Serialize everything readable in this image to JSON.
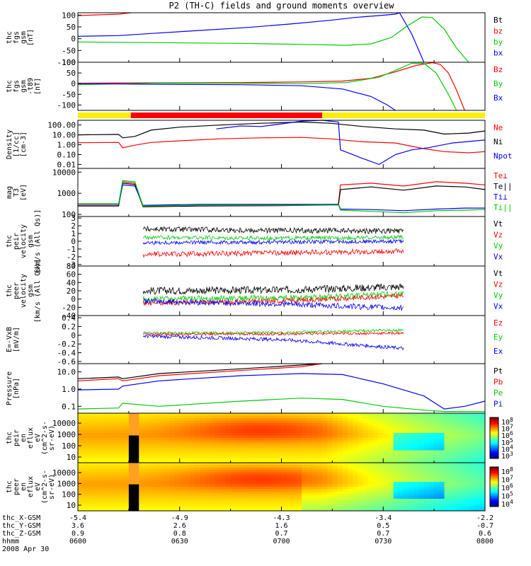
{
  "title": "P2 (TH-C) fields and ground moments overview",
  "chart_data": [
    {
      "panel": "fgs-gsm",
      "type": "line",
      "ylabel": [
        "thc",
        "fgs",
        "gsm",
        "[nT]"
      ],
      "ylim": [
        -100,
        110
      ],
      "yticks": [
        100,
        50,
        0,
        -50,
        -100
      ],
      "legend": [
        {
          "label": "Bt",
          "color": "#000000"
        },
        {
          "label": "bz",
          "color": "#ff0000"
        },
        {
          "label": "by",
          "color": "#00cc00"
        },
        {
          "label": "bx",
          "color": "#0000ff"
        }
      ],
      "series": [
        {
          "color": "#ff0000",
          "x": [
            0.0,
            0.1,
            0.13
          ],
          "y": [
            98,
            104,
            112
          ]
        },
        {
          "color": "#0000ff",
          "x": [
            0.0,
            0.1,
            0.18,
            0.3,
            0.42,
            0.52,
            0.62,
            0.68,
            0.74,
            0.78,
            0.79,
            0.82,
            0.85
          ],
          "y": [
            10,
            13,
            22,
            35,
            48,
            62,
            78,
            90,
            98,
            104,
            110,
            20,
            -100
          ]
        },
        {
          "color": "#00cc00",
          "x": [
            0.0,
            0.2,
            0.4,
            0.55,
            0.66,
            0.72,
            0.77,
            0.81,
            0.845,
            0.87,
            0.9,
            0.93,
            0.96
          ],
          "y": [
            -14,
            -17,
            -20,
            -24,
            -28,
            -22,
            5,
            55,
            92,
            90,
            40,
            -40,
            -110
          ]
        }
      ]
    },
    {
      "panel": "fgs-gsm-t89",
      "type": "line",
      "ylabel": [
        "thc",
        "fgs",
        "gsm",
        "-t89",
        "[nT]"
      ],
      "ylim": [
        -125,
        100
      ],
      "yticks": [
        100,
        50,
        0,
        -50,
        -100
      ],
      "legend": [
        {
          "label": "Bz",
          "color": "#ff0000"
        },
        {
          "label": "By",
          "color": "#00cc00"
        },
        {
          "label": "Bx",
          "color": "#0000ff"
        }
      ],
      "series": [
        {
          "color": "#ff0000",
          "x": [
            0.0,
            0.2,
            0.4,
            0.55,
            0.65,
            0.72,
            0.78,
            0.83,
            0.87,
            0.89,
            0.91,
            0.93,
            0.95
          ],
          "y": [
            2,
            4,
            5,
            8,
            12,
            25,
            55,
            85,
            98,
            90,
            50,
            -30,
            -130
          ]
        },
        {
          "color": "#00cc00",
          "x": [
            0.0,
            0.2,
            0.4,
            0.55,
            0.66,
            0.74,
            0.79,
            0.82,
            0.85,
            0.88,
            0.91,
            0.93
          ],
          "y": [
            -5,
            3,
            2,
            0,
            5,
            30,
            70,
            95,
            95,
            50,
            -50,
            -130
          ]
        },
        {
          "color": "#0000ff",
          "x": [
            0.0,
            0.2,
            0.4,
            0.55,
            0.65,
            0.72,
            0.76,
            0.78
          ],
          "y": [
            0,
            -3,
            -5,
            -10,
            -25,
            -60,
            -100,
            -130
          ]
        }
      ]
    },
    {
      "panel": "mode-bar",
      "type": "bar",
      "segments": [
        {
          "start": 0.0,
          "end": 0.13,
          "color": "#ffee00"
        },
        {
          "start": 0.13,
          "end": 0.6,
          "color": "#ff0000"
        },
        {
          "start": 0.6,
          "end": 1.0,
          "color": "#ffee00"
        }
      ]
    },
    {
      "panel": "density",
      "type": "line",
      "log": true,
      "ylabel": [
        "Density",
        "[1/cc]",
        "[cm-3]"
      ],
      "ylim": [
        0.004,
        300
      ],
      "yticks": [
        "100.00",
        "10.00",
        "1.00",
        "0.10",
        "0.01"
      ],
      "ytick_values": [
        100,
        10,
        1,
        0.1,
        0.01
      ],
      "legend": [
        {
          "label": "Ne",
          "color": "#ff0000"
        },
        {
          "label": "Ni",
          "color": "#000000"
        },
        {
          "label": "Npot",
          "color": "#0000ff"
        }
      ],
      "series": [
        {
          "color": "#000000",
          "x": [
            0.0,
            0.1,
            0.11,
            0.14,
            0.18,
            0.25,
            0.35,
            0.45,
            0.55,
            0.62,
            0.7,
            0.78,
            0.85,
            0.9,
            0.96,
            1.0
          ],
          "y": [
            10,
            11,
            5,
            7,
            30,
            60,
            100,
            150,
            200,
            150,
            70,
            40,
            30,
            12,
            15,
            25
          ]
        },
        {
          "color": "#ff0000",
          "x": [
            0.0,
            0.1,
            0.11,
            0.14,
            0.18,
            0.25,
            0.35,
            0.45,
            0.55,
            0.62,
            0.7,
            0.78,
            0.85,
            0.9,
            0.96,
            1.0
          ],
          "y": [
            1.6,
            1.7,
            0.5,
            0.9,
            1.7,
            2.5,
            4,
            5,
            5.5,
            4,
            2,
            1.5,
            0.4,
            0.2,
            0.15,
            0.2
          ]
        },
        {
          "color": "#0000ff",
          "x": [
            0.34,
            0.4,
            0.45,
            0.5,
            0.55,
            0.6,
            0.64,
            0.645,
            0.7,
            0.74,
            0.78,
            0.82,
            0.86,
            0.92,
            1.0
          ],
          "y": [
            40,
            80,
            70,
            130,
            250,
            300,
            200,
            0.3,
            0.04,
            0.01,
            0.1,
            0.3,
            0.5,
            1.5,
            3
          ]
        }
      ]
    },
    {
      "panel": "temperature",
      "type": "line",
      "log": true,
      "ylabel": [
        "mag",
        "T3",
        "[eV]"
      ],
      "ylim": [
        80,
        15000
      ],
      "yticks": [
        "10000",
        "1000",
        "100"
      ],
      "ytick_values": [
        10000,
        1000,
        100
      ],
      "legend": [
        {
          "label": "Te⊥",
          "color": "#ff0000"
        },
        {
          "label": "Te||",
          "color": "#000000"
        },
        {
          "label": "Ti⊥",
          "color": "#0000ff"
        },
        {
          "label": "Ti||",
          "color": "#00cc00"
        }
      ],
      "series": [
        {
          "color": "#ff0000",
          "x": [
            0.0,
            0.1,
            0.11,
            0.14,
            0.16,
            0.3,
            0.5,
            0.64,
            0.645,
            0.72,
            0.8,
            0.88,
            0.95,
            1.0
          ],
          "y": [
            260,
            260,
            3500,
            3000,
            250,
            270,
            280,
            300,
            2500,
            3000,
            2200,
            3500,
            3000,
            2500
          ]
        },
        {
          "color": "#000000",
          "x": [
            0.0,
            0.1,
            0.11,
            0.14,
            0.16,
            0.3,
            0.5,
            0.64,
            0.645,
            0.72,
            0.8,
            0.88,
            0.95,
            1.0
          ],
          "y": [
            250,
            250,
            3000,
            2600,
            230,
            250,
            260,
            280,
            1500,
            2000,
            1400,
            2200,
            2000,
            1500
          ]
        },
        {
          "color": "#0000ff",
          "x": [
            0.0,
            0.1,
            0.11,
            0.14,
            0.16,
            0.3,
            0.5,
            0.64,
            0.645,
            0.72,
            0.8,
            0.88,
            0.95,
            1.0
          ],
          "y": [
            300,
            300,
            2500,
            2200,
            270,
            300,
            300,
            300,
            180,
            170,
            150,
            180,
            200,
            200
          ]
        },
        {
          "color": "#00cc00",
          "x": [
            0.0,
            0.1,
            0.11,
            0.14,
            0.16,
            0.3,
            0.5,
            0.64,
            0.645,
            0.72,
            0.8,
            0.88,
            0.95,
            1.0
          ],
          "y": [
            320,
            320,
            4000,
            3500,
            250,
            270,
            270,
            280,
            160,
            140,
            120,
            150,
            160,
            170
          ]
        }
      ]
    },
    {
      "panel": "peir-velocity",
      "type": "line",
      "ylabel": [
        "thc",
        "peir",
        "velocity",
        "gsm",
        "[km/s (All Qs)]"
      ],
      "ylim": [
        -3.2,
        3.2
      ],
      "yticks": [
        3,
        2,
        1,
        0,
        -1,
        -2,
        -3
      ],
      "legend": [
        {
          "label": "Vt",
          "color": "#000000"
        },
        {
          "label": "Vz",
          "color": "#ff0000"
        },
        {
          "label": "Vy",
          "color": "#00cc00"
        },
        {
          "label": "Vx",
          "color": "#0000ff"
        }
      ],
      "series": [
        {
          "color": "#000000",
          "noise": 0.35,
          "x": [
            0.16,
            0.5,
            0.8
          ],
          "y": [
            1.6,
            1.4,
            1.3
          ]
        },
        {
          "color": "#00cc00",
          "noise": 0.25,
          "x": [
            0.16,
            0.5,
            0.8
          ],
          "y": [
            0.5,
            0.4,
            0.5
          ]
        },
        {
          "color": "#0000ff",
          "noise": 0.25,
          "x": [
            0.16,
            0.5,
            0.8
          ],
          "y": [
            -0.2,
            -0.1,
            0.0
          ]
        },
        {
          "color": "#ff0000",
          "noise": 0.35,
          "x": [
            0.16,
            0.5,
            0.8
          ],
          "y": [
            -1.7,
            -1.5,
            -1.3
          ]
        }
      ]
    },
    {
      "panel": "peer-velocity",
      "type": "line",
      "ylabel": [
        "thc",
        "peer",
        "velocity",
        "gsm",
        "[km/s (All Qs)]"
      ],
      "ylim": [
        -40,
        80
      ],
      "yticks": [
        80,
        60,
        40,
        20,
        0,
        -20,
        -40
      ],
      "legend": [
        {
          "label": "Vt",
          "color": "#000000"
        },
        {
          "label": "Vz",
          "color": "#ff0000"
        },
        {
          "label": "Vy",
          "color": "#00cc00"
        },
        {
          "label": "Vx",
          "color": "#0000ff"
        }
      ],
      "series": [
        {
          "color": "#000000",
          "noise": 9,
          "x": [
            0.16,
            0.5,
            0.8
          ],
          "y": [
            20,
            22,
            30
          ]
        },
        {
          "color": "#00cc00",
          "noise": 7,
          "x": [
            0.16,
            0.5,
            0.8
          ],
          "y": [
            0,
            3,
            12
          ]
        },
        {
          "color": "#ff0000",
          "noise": 6,
          "x": [
            0.16,
            0.5,
            0.8
          ],
          "y": [
            -10,
            -5,
            8
          ]
        },
        {
          "color": "#0000ff",
          "noise": 7,
          "x": [
            0.16,
            0.5,
            0.8
          ],
          "y": [
            -5,
            -12,
            -22
          ]
        }
      ]
    },
    {
      "panel": "e-field",
      "type": "line",
      "ylabel": [
        "E=-VxB",
        "[mV/m]"
      ],
      "ylim": [
        -0.65,
        0.45
      ],
      "yticks": [
        0.4,
        0.2,
        0.0,
        -0.2,
        -0.4,
        -0.6
      ],
      "legend": [
        {
          "label": "Ez",
          "color": "#ff0000"
        },
        {
          "label": "Ey",
          "color": "#00cc00"
        },
        {
          "label": "Ex",
          "color": "#0000ff"
        }
      ],
      "series": [
        {
          "color": "#00cc00",
          "noise": 0.03,
          "x": [
            0.16,
            0.5,
            0.8
          ],
          "y": [
            0.05,
            0.06,
            0.12
          ]
        },
        {
          "color": "#ff0000",
          "noise": 0.03,
          "x": [
            0.16,
            0.5,
            0.8
          ],
          "y": [
            0.02,
            0.03,
            0.05
          ]
        },
        {
          "color": "#0000ff",
          "noise": 0.04,
          "x": [
            0.16,
            0.5,
            0.8
          ],
          "y": [
            -0.02,
            -0.1,
            -0.3
          ]
        }
      ]
    },
    {
      "panel": "pressure",
      "type": "line",
      "log": true,
      "ylabel": [
        "Pressure",
        "[nPa]"
      ],
      "ylim": [
        0.04,
        30
      ],
      "yticks": [
        "10.0",
        "1.0",
        "0.1"
      ],
      "ytick_values": [
        10,
        1,
        0.1
      ],
      "legend": [
        {
          "label": "Pt",
          "color": "#000000"
        },
        {
          "label": "Pb",
          "color": "#ff0000"
        },
        {
          "label": "Pe",
          "color": "#00cc00"
        },
        {
          "label": "Pi",
          "color": "#0000ff"
        }
      ],
      "series": [
        {
          "color": "#000000",
          "x": [
            0.0,
            0.1,
            0.11,
            0.2,
            0.4,
            0.55,
            0.6
          ],
          "y": [
            4,
            5,
            4,
            8,
            15,
            25,
            35
          ]
        },
        {
          "color": "#ff0000",
          "x": [
            0.0,
            0.1,
            0.11,
            0.2,
            0.4,
            0.55,
            0.6
          ],
          "y": [
            3,
            4,
            3,
            6,
            12,
            20,
            30
          ]
        },
        {
          "color": "#0000ff",
          "x": [
            0.0,
            0.1,
            0.11,
            0.2,
            0.4,
            0.55,
            0.65,
            0.75,
            0.85,
            0.9,
            0.95,
            1.0
          ],
          "y": [
            0.9,
            1.0,
            1.5,
            3,
            6,
            8,
            7,
            2,
            0.4,
            0.07,
            0.1,
            0.2
          ]
        },
        {
          "color": "#00cc00",
          "x": [
            0.0,
            0.1,
            0.11,
            0.2,
            0.4,
            0.55,
            0.65,
            0.75,
            0.85,
            0.9,
            1.0
          ],
          "y": [
            0.07,
            0.08,
            0.15,
            0.1,
            0.2,
            0.3,
            0.25,
            0.1,
            0.06,
            0.05,
            0.05
          ]
        }
      ]
    },
    {
      "panel": "peir-spectrogram",
      "type": "heatmap",
      "ylabel": [
        "thc",
        "peir",
        "en",
        "eflux",
        "eV",
        "(cm^2-s-",
        "sr-eV)"
      ],
      "yticks": [
        "10000",
        "1000",
        "100",
        "10"
      ],
      "colorbar_ticks": [
        "10^8",
        "10^7",
        "10^6",
        "10^5",
        "10^4",
        "10^3"
      ]
    },
    {
      "panel": "peer-spectrogram",
      "type": "heatmap",
      "ylabel": [
        "thc",
        "peer",
        "en",
        "eflux",
        "eV",
        "(cm^2-s-",
        "sr-eV)"
      ],
      "yticks": [
        "10000",
        "1000",
        "100",
        "10"
      ],
      "colorbar_ticks": [
        "10^8",
        "10^7",
        "10^6",
        "10^5",
        "10^4"
      ]
    }
  ],
  "xaxis": {
    "rows": [
      {
        "label": "thc_X-GSM",
        "values": [
          "-5.4",
          "-4.9",
          "-4.3",
          "-3.4",
          "-2.2"
        ]
      },
      {
        "label": "thc_Y-GSM",
        "values": [
          "3.6",
          "2.6",
          "1.6",
          "0.5",
          "-0.7"
        ]
      },
      {
        "label": "thc_Z-GSM",
        "values": [
          "0.9",
          "0.8",
          "0.7",
          "0.7",
          "0.6"
        ]
      },
      {
        "label": "hhmm",
        "values": [
          "0600",
          "0630",
          "0700",
          "0730",
          "0800"
        ]
      }
    ],
    "date": "2008 Apr 30"
  },
  "colors": {
    "axis": "#000000",
    "background": "#ffffff"
  }
}
